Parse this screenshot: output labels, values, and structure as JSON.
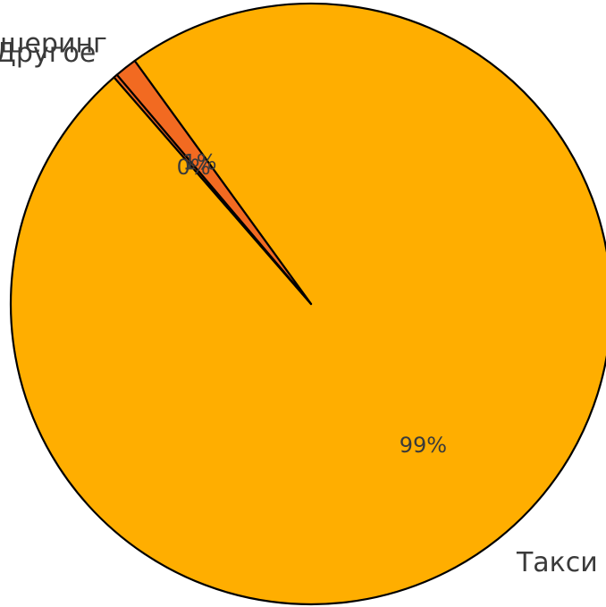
{
  "chart_data": {
    "type": "pie",
    "title": "",
    "start_angle_deg": 131,
    "direction": "counterclockwise",
    "categories": [
      "Такси",
      "Каршеринг",
      "Другое"
    ],
    "values": [
      98.6,
      1.2,
      0.2
    ],
    "percent_labels": [
      "99%",
      "1%",
      "0%"
    ],
    "colors": [
      "#FFAE00",
      "#F26A21",
      "#F26A21"
    ],
    "edge_color": "#000000",
    "legend": "none",
    "label_placement": "outside"
  }
}
